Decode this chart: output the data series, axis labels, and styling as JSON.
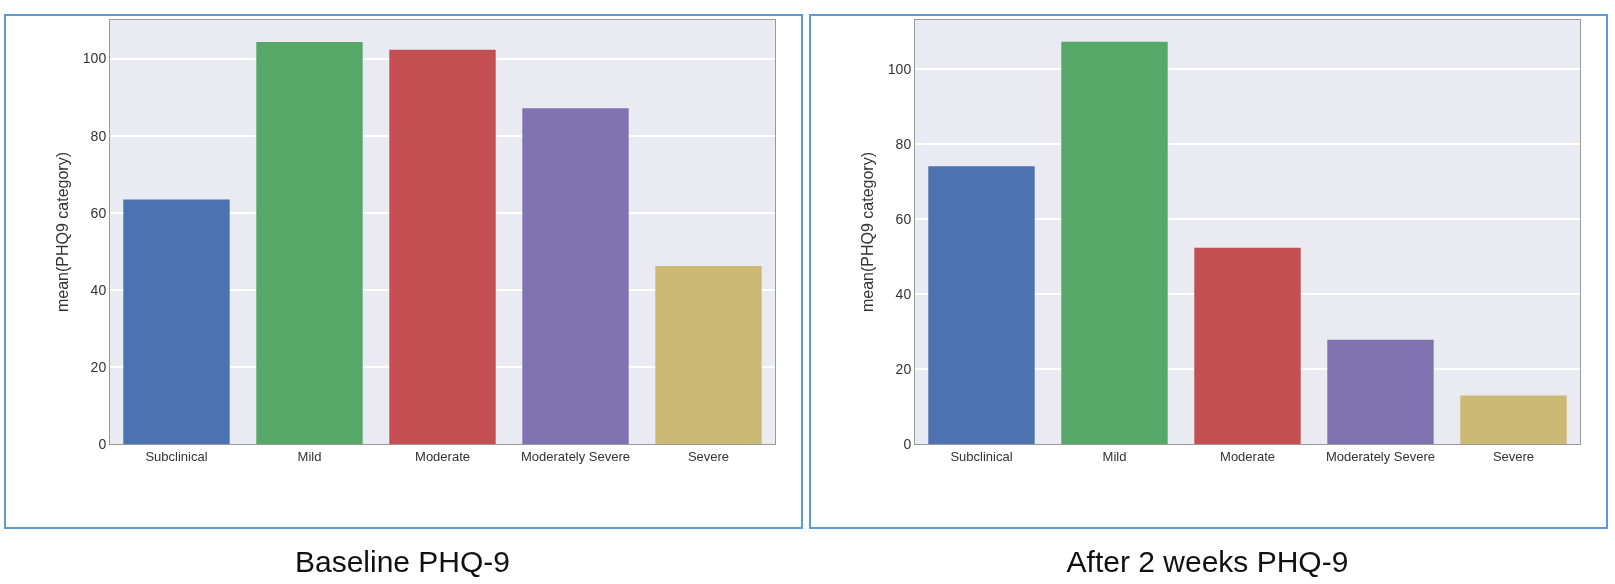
{
  "chart_data": [
    {
      "type": "bar",
      "title": "Baseline PHQ-9",
      "ylabel": "mean(PHQ9 category)",
      "categories": [
        "Subclinical",
        "Mild",
        "Moderate",
        "Moderately Severe",
        "Severe"
      ],
      "values": [
        63.4,
        104.3,
        102.3,
        87.1,
        46.2
      ],
      "colors": [
        "#4c72b0",
        "#55a868",
        "#c44e52",
        "#8172b2",
        "#ccb974"
      ],
      "ylim": [
        0,
        110
      ],
      "yticks": [
        0,
        20,
        40,
        60,
        80,
        100
      ],
      "grid": "y"
    },
    {
      "type": "bar",
      "title": "After 2 weeks PHQ-9",
      "ylabel": "mean(PHQ9 category)",
      "categories": [
        "Subclinical",
        "Mild",
        "Moderate",
        "Moderately Severe",
        "Severe"
      ],
      "values": [
        74,
        107.2,
        52.3,
        27.8,
        12.9
      ],
      "colors": [
        "#4c72b0",
        "#55a868",
        "#c44e52",
        "#8172b2",
        "#ccb974"
      ],
      "ylim": [
        0,
        113
      ],
      "yticks": [
        0,
        20,
        40,
        60,
        80,
        100
      ],
      "grid": "y"
    }
  ]
}
